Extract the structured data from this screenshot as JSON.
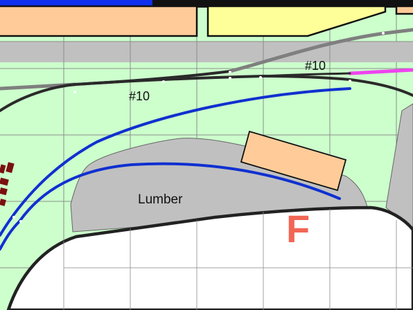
{
  "colors": {
    "background_green": "#ccffcc",
    "grid_line": "#8c8c8c",
    "road_gray": "#c0c0c0",
    "track_dark": "#2a2a2a",
    "track_gray": "#7f7f7f",
    "track_blue": "#1030d0",
    "track_magenta": "#ee44ee",
    "building_peach": "#ffcc99",
    "building_yellow": "#ffff99",
    "structure_maroon": "#7a1010",
    "zone_letter": "#f26655",
    "edge_blue": "#1030ee",
    "edge_black": "#111111"
  },
  "labels": {
    "turnout_upper": "#10",
    "turnout_lower": "#10",
    "industry": "Lumber",
    "zone": "F"
  }
}
